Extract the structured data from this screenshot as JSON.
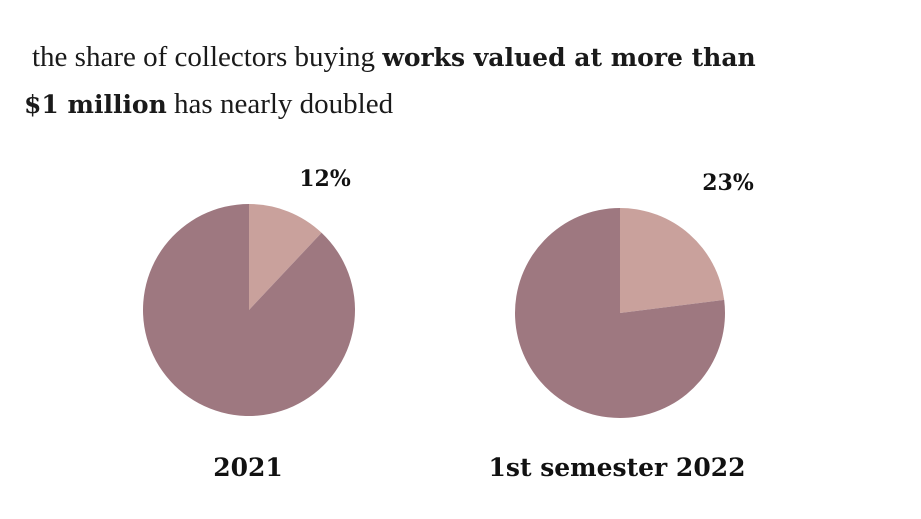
{
  "headline": {
    "prefix": "the share of collectors buying ",
    "bold1": "works valued at more than",
    "bold2": "$1 million",
    "suffix": " has nearly doubled"
  },
  "colors": {
    "highlight": "#c9a19c",
    "rest": "#9e7880"
  },
  "chart_data": [
    {
      "type": "pie",
      "category": "2021",
      "values": [
        12,
        88
      ],
      "labels": [
        "12%",
        ""
      ],
      "title": "",
      "legend": "none"
    },
    {
      "type": "pie",
      "category": "1st semester 2022",
      "values": [
        23,
        77
      ],
      "labels": [
        "23%",
        ""
      ],
      "title": "",
      "legend": "none"
    }
  ]
}
